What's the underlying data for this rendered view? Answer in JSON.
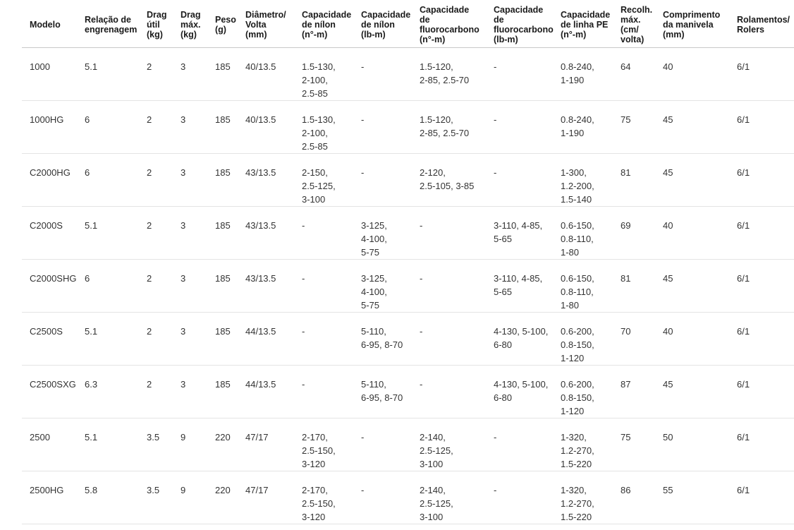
{
  "colors": {
    "background": "#ffffff",
    "header_text": "#1a1a1a",
    "body_text": "#333333",
    "row_divider": "#e4e4e4",
    "header_divider": "#c8c8c8"
  },
  "table": {
    "columns": [
      {
        "id": "modelo",
        "label": "Modelo"
      },
      {
        "id": "relacao",
        "label": "Relação de\nengrenagem"
      },
      {
        "id": "drag-util",
        "label": "Drag\nútil\n(kg)"
      },
      {
        "id": "drag-max",
        "label": "Drag\nmáx.\n(kg)"
      },
      {
        "id": "peso",
        "label": "Peso\n(g)"
      },
      {
        "id": "diametro",
        "label": "Diâmetro/\nVolta\n(mm)"
      },
      {
        "id": "cap-nilon-n",
        "label": "Capacidade\nde nílon\n(n°-m)"
      },
      {
        "id": "cap-nilon-lb",
        "label": "Capacidade\nde nílon\n(lb-m)"
      },
      {
        "id": "cap-fluoro-n",
        "label": "Capacidade\nde\nfluorocarbono\n(n°-m)"
      },
      {
        "id": "cap-fluoro-lb",
        "label": "Capacidade\nde\nfluorocarbono\n(lb-m)"
      },
      {
        "id": "cap-pe",
        "label": "Capacidade\nde linha PE\n(n°-m)"
      },
      {
        "id": "recolhimento",
        "label": "Recolh.\nmáx.\n(cm/\nvolta)"
      },
      {
        "id": "manivela",
        "label": "Comprimento\nda manivela\n(mm)"
      },
      {
        "id": "rolamentos",
        "label": "Rolamentos/\nRolers"
      }
    ],
    "rows": [
      [
        "1000",
        "5.1",
        "2",
        "3",
        "185",
        "40/13.5",
        "1.5-130,\n2-100,\n2.5-85",
        "-",
        "1.5-120,\n2-85, 2.5-70",
        "-",
        "0.8-240,\n1-190",
        "64",
        "40",
        "6/1"
      ],
      [
        "1000HG",
        "6",
        "2",
        "3",
        "185",
        "40/13.5",
        "1.5-130,\n2-100,\n2.5-85",
        "-",
        "1.5-120,\n2-85, 2.5-70",
        "-",
        "0.8-240,\n1-190",
        "75",
        "45",
        "6/1"
      ],
      [
        "C2000HG",
        "6",
        "2",
        "3",
        "185",
        "43/13.5",
        "2-150,\n2.5-125,\n3-100",
        "-",
        "2-120,\n2.5-105, 3-85",
        "-",
        "1-300,\n1.2-200,\n1.5-140",
        "81",
        "45",
        "6/1"
      ],
      [
        "C2000S",
        "5.1",
        "2",
        "3",
        "185",
        "43/13.5",
        "-",
        "3-125,\n4-100,\n5-75",
        "-",
        "3-110, 4-85,\n5-65",
        "0.6-150,\n0.8-110,\n1-80",
        "69",
        "40",
        "6/1"
      ],
      [
        "C2000SHG",
        "6",
        "2",
        "3",
        "185",
        "43/13.5",
        "-",
        "3-125,\n4-100,\n5-75",
        "-",
        "3-110, 4-85,\n5-65",
        "0.6-150,\n0.8-110,\n1-80",
        "81",
        "45",
        "6/1"
      ],
      [
        "C2500S",
        "5.1",
        "2",
        "3",
        "185",
        "44/13.5",
        "-",
        "5-110,\n6-95, 8-70",
        "-",
        "4-130, 5-100,\n6-80",
        "0.6-200,\n0.8-150,\n1-120",
        "70",
        "40",
        "6/1"
      ],
      [
        "C2500SXG",
        "6.3",
        "2",
        "3",
        "185",
        "44/13.5",
        "-",
        "5-110,\n6-95, 8-70",
        "-",
        "4-130, 5-100,\n6-80",
        "0.6-200,\n0.8-150,\n1-120",
        "87",
        "45",
        "6/1"
      ],
      [
        "2500",
        "5.1",
        "3.5",
        "9",
        "220",
        "47/17",
        "2-170,\n2.5-150,\n3-120",
        "-",
        "2-140,\n2.5-125,\n3-100",
        "-",
        "1-320,\n1.2-270,\n1.5-220",
        "75",
        "50",
        "6/1"
      ],
      [
        "2500HG",
        "5.8",
        "3.5",
        "9",
        "220",
        "47/17",
        "2-170,\n2.5-150,\n3-120",
        "-",
        "2-140,\n2.5-125,\n3-100",
        "-",
        "1-320,\n1.2-270,\n1.5-220",
        "86",
        "55",
        "6/1"
      ]
    ]
  }
}
